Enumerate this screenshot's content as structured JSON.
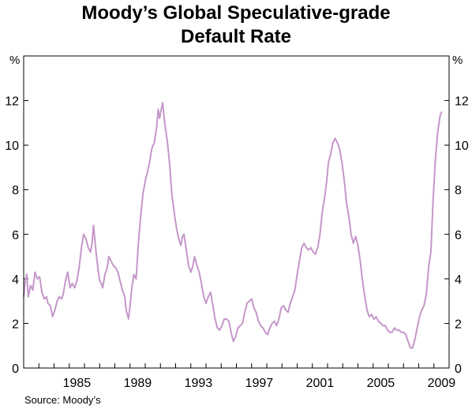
{
  "title_line1": "Moody’s Global Speculative-grade",
  "title_line2": "Default Rate",
  "source": "Source: Moody’s",
  "colors": {
    "line": "#c597c9",
    "axis": "#000000"
  },
  "chart_data": {
    "type": "line",
    "title": "Moody’s Global Speculative-grade Default Rate",
    "y_unit_left": "%",
    "y_unit_right": "%",
    "xlim": [
      1982.0,
      2010.0
    ],
    "ylim": [
      0,
      14
    ],
    "y_ticks": [
      0,
      2,
      4,
      6,
      8,
      10,
      12
    ],
    "x_tick_labels": [
      "1985",
      "1989",
      "1993",
      "1997",
      "2001",
      "2005",
      "2009"
    ],
    "x_tick_values": [
      1985,
      1989,
      1993,
      1997,
      2001,
      2005,
      2009
    ],
    "grid": false,
    "series": [
      {
        "x": [
          1982.0,
          1982.1,
          1982.2,
          1982.3,
          1982.45,
          1982.6,
          1982.75,
          1982.9,
          1983.05,
          1983.2,
          1983.35,
          1983.5,
          1983.6,
          1983.75,
          1983.9,
          1984.05,
          1984.2,
          1984.35,
          1984.5,
          1984.6,
          1984.75,
          1984.9,
          1985.05,
          1985.2,
          1985.35,
          1985.5,
          1985.65,
          1985.8,
          1985.95,
          1986.1,
          1986.25,
          1986.4,
          1986.5,
          1986.6,
          1986.75,
          1986.9,
          1987.0,
          1987.1,
          1987.2,
          1987.35,
          1987.5,
          1987.6,
          1987.75,
          1987.9,
          1988.05,
          1988.2,
          1988.35,
          1988.5,
          1988.65,
          1988.75,
          1988.9,
          1989.0,
          1989.1,
          1989.25,
          1989.4,
          1989.55,
          1989.7,
          1989.85,
          1990.0,
          1990.15,
          1990.3,
          1990.45,
          1990.6,
          1990.75,
          1990.85,
          1990.95,
          1991.05,
          1991.15,
          1991.3,
          1991.45,
          1991.6,
          1991.75,
          1991.9,
          1992.05,
          1992.2,
          1992.35,
          1992.45,
          1992.55,
          1992.7,
          1992.85,
          1993.0,
          1993.1,
          1993.25,
          1993.4,
          1993.55,
          1993.7,
          1993.85,
          1994.0,
          1994.15,
          1994.3,
          1994.45,
          1994.6,
          1994.75,
          1994.9,
          1995.05,
          1995.2,
          1995.35,
          1995.5,
          1995.65,
          1995.8,
          1995.95,
          1996.1,
          1996.25,
          1996.4,
          1996.55,
          1996.7,
          1996.85,
          1997.0,
          1997.15,
          1997.3,
          1997.45,
          1997.6,
          1997.75,
          1997.9,
          1998.05,
          1998.2,
          1998.35,
          1998.5,
          1998.65,
          1998.8,
          1998.95,
          1999.1,
          1999.25,
          1999.4,
          1999.55,
          1999.7,
          1999.85,
          2000.0,
          2000.15,
          2000.3,
          2000.45,
          2000.6,
          2000.75,
          2000.9,
          2001.05,
          2001.2,
          2001.35,
          2001.5,
          2001.65,
          2001.8,
          2001.95,
          2002.05,
          2002.2,
          2002.35,
          2002.5,
          2002.65,
          2002.8,
          2002.95,
          2003.1,
          2003.25,
          2003.4,
          2003.55,
          2003.7,
          2003.85,
          2004.0,
          2004.15,
          2004.3,
          2004.45,
          2004.6,
          2004.75,
          2004.9,
          2005.05,
          2005.2,
          2005.35,
          2005.5,
          2005.65,
          2005.8,
          2005.95,
          2006.1,
          2006.25,
          2006.4,
          2006.55,
          2006.7,
          2006.85,
          2007.0,
          2007.15,
          2007.3,
          2007.45,
          2007.6,
          2007.75,
          2007.9,
          2008.05,
          2008.2,
          2008.35,
          2008.5,
          2008.65,
          2008.8,
          2008.95,
          2009.1,
          2009.25,
          2009.4,
          2009.5
        ],
        "values": [
          3.2,
          3.9,
          4.2,
          3.2,
          3.7,
          3.5,
          4.3,
          4.0,
          4.1,
          3.4,
          3.1,
          3.2,
          2.9,
          2.8,
          2.3,
          2.6,
          3.0,
          3.2,
          3.1,
          3.3,
          3.9,
          4.3,
          3.6,
          3.8,
          3.6,
          3.9,
          4.5,
          5.4,
          6.0,
          5.8,
          5.4,
          5.2,
          5.6,
          6.4,
          5.3,
          4.4,
          3.9,
          3.8,
          3.6,
          4.2,
          4.5,
          5.0,
          4.8,
          4.6,
          4.5,
          4.3,
          3.9,
          3.5,
          3.2,
          2.6,
          2.2,
          2.8,
          3.5,
          4.2,
          4.0,
          5.6,
          6.8,
          7.8,
          8.4,
          8.8,
          9.3,
          9.9,
          10.1,
          10.8,
          11.6,
          11.2,
          11.6,
          11.9,
          10.9,
          10.2,
          9.2,
          7.8,
          7.0,
          6.3,
          5.8,
          5.5,
          5.9,
          6.0,
          5.3,
          4.6,
          4.3,
          4.5,
          5.0,
          4.6,
          4.3,
          3.8,
          3.2,
          2.9,
          3.2,
          3.4,
          2.8,
          2.2,
          1.8,
          1.7,
          1.9,
          2.2,
          2.2,
          2.1,
          1.6,
          1.2,
          1.4,
          1.8,
          1.9,
          2.0,
          2.5,
          2.9,
          3.0,
          3.1,
          2.7,
          2.5,
          2.1,
          1.9,
          1.8,
          1.6,
          1.5,
          1.8,
          2.0,
          2.1,
          1.9,
          2.2,
          2.7,
          2.8,
          2.6,
          2.5,
          2.9,
          3.2,
          3.5,
          4.2,
          4.8,
          5.4,
          5.6,
          5.4,
          5.3,
          5.4,
          5.2,
          5.1,
          5.4,
          6.0,
          7.0,
          7.6,
          8.4,
          9.2,
          9.6,
          10.1,
          10.3,
          10.1,
          9.8,
          9.2,
          8.4,
          7.4,
          6.8,
          6.0,
          5.6,
          5.9,
          5.5,
          4.8,
          3.9,
          3.2,
          2.6,
          2.3,
          2.4,
          2.2,
          2.3,
          2.1,
          2.0,
          1.9,
          1.9,
          1.7,
          1.6,
          1.6,
          1.8,
          1.7,
          1.7,
          1.6,
          1.6,
          1.5,
          1.2,
          0.9,
          0.9,
          1.3,
          1.8,
          2.3,
          2.6,
          2.8,
          3.3,
          4.5,
          5.2,
          7.6,
          9.4,
          10.6,
          11.3,
          11.5
        ]
      }
    ]
  }
}
